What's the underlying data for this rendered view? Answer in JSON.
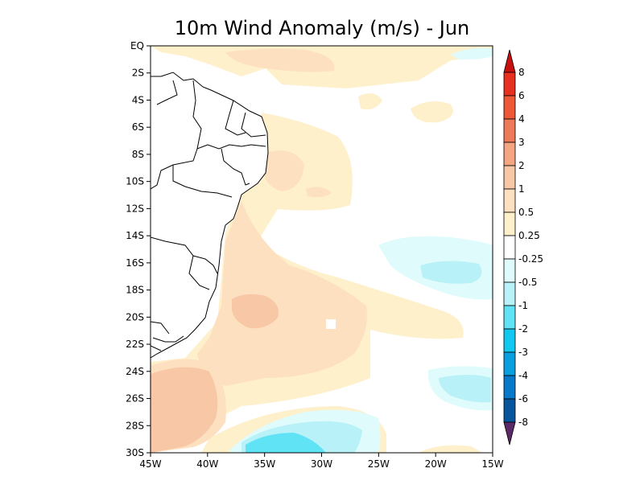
{
  "title": "10m Wind Anomaly (m/s) - Jun",
  "colors": {
    "land": "#ffffff",
    "coast": "#000000",
    "neutral": "#ffffff",
    "pos_0_25_0_5": "#fff0cc",
    "pos_0_5_1": "#fde0c0",
    "pos_1_2": "#f8c7a5",
    "pos_2_3": "#f4a582",
    "pos_3_4": "#ef7a5a",
    "pos_4_6": "#ec5838",
    "pos_6_8": "#e83020",
    "pos_gt8": "#d7191c",
    "neg_0_25_0_5": "#e0fbfb",
    "neg_0_5_1": "#b8f2f8",
    "neg_1_2": "#60e4f5",
    "neg_2_3": "#10c8f0",
    "neg_3_4": "#0aa0e0",
    "neg_4_6": "#0878c8",
    "neg_6_8": "#07559c",
    "neg_lt8": "#0b3f78",
    "under_triangle": "#5a2a66",
    "over_triangle": "#c81010"
  },
  "chart_data": {
    "type": "heatmap",
    "variable": "10m Wind Anomaly (m/s)",
    "month": "Jun",
    "lon_range": [
      -45,
      -15
    ],
    "lat_range": [
      -30,
      0
    ],
    "x_ticks": [
      "45W",
      "40W",
      "35W",
      "30W",
      "25W",
      "20W",
      "15W"
    ],
    "y_ticks": [
      "EQ",
      "2S",
      "4S",
      "6S",
      "8S",
      "10S",
      "12S",
      "14S",
      "16S",
      "18S",
      "20S",
      "22S",
      "24S",
      "26S",
      "28S",
      "30S"
    ],
    "colorbar_labels": [
      "8",
      "6",
      "4",
      "3",
      "2",
      "1",
      "0.5",
      "0.25",
      "-0.25",
      "-0.5",
      "-1",
      "-2",
      "-3",
      "-4",
      "-6",
      "-8"
    ],
    "regions": [
      {
        "name": "north band",
        "range": "0.25 to 0.5"
      },
      {
        "name": "north patch",
        "range": "0.5 to 1"
      },
      {
        "name": "central patch",
        "range": "0.5 to 1"
      },
      {
        "name": "central core",
        "range": "1 to 2"
      },
      {
        "name": "southwest corner",
        "range": "1 to 2"
      },
      {
        "name": "east ocean",
        "range": "-0.25 to -0.5"
      },
      {
        "name": "east core",
        "range": "-0.5 to -1"
      },
      {
        "name": "south band",
        "range": "-0.25 to -0.5"
      },
      {
        "name": "south core",
        "range": "-0.5 to -1"
      },
      {
        "name": "south deepest",
        "range": "-1 to -2"
      }
    ]
  }
}
